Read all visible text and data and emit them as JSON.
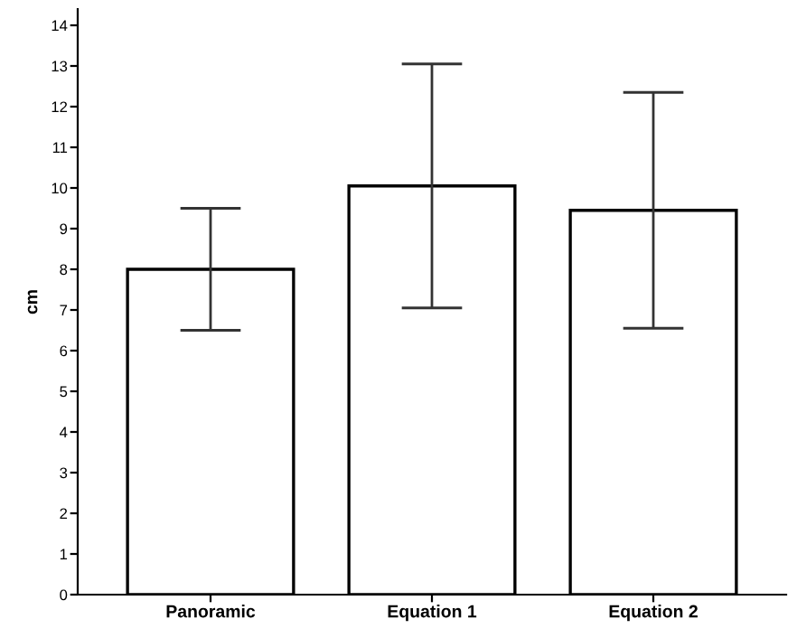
{
  "chart_data": {
    "type": "bar",
    "ylabel": "cm",
    "categories": [
      "Panoramic",
      "Equation 1",
      "Equation 2"
    ],
    "values": [
      8.0,
      10.05,
      9.45
    ],
    "errors": [
      [
        6.5,
        9.5
      ],
      [
        7.05,
        13.05
      ],
      [
        6.55,
        12.35
      ]
    ],
    "color": "#ffffff",
    "ylim": [
      0,
      14.4
    ],
    "yticks": [
      0,
      1,
      2,
      3,
      4,
      5,
      6,
      7,
      8,
      9,
      10,
      11,
      12,
      13,
      14
    ],
    "grid": false
  }
}
